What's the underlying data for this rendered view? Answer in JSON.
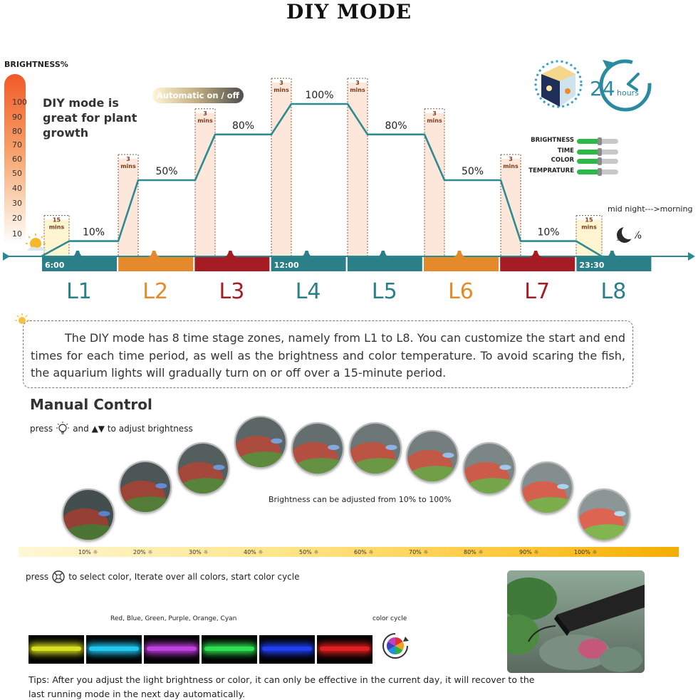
{
  "title": "DIY MODE",
  "y_axis": {
    "label": "BRIGHTNESS%",
    "ticks": [
      "100",
      "90",
      "80",
      "70",
      "60",
      "50",
      "40",
      "30",
      "20",
      "10"
    ]
  },
  "headline": "DIY mode is great for plant growth",
  "auto_pill": "Automatic on / off",
  "right_note": "mid night--->morning",
  "settings": [
    "BRIGHTNESS",
    "TIME",
    "COLOR",
    "TEMPRATURE"
  ],
  "clock_badge": {
    "number": "24",
    "unit": "hours"
  },
  "chart_data": {
    "type": "line",
    "title": "DIY MODE",
    "ylabel": "BRIGHTNESS%",
    "ylim": [
      0,
      100
    ],
    "stages": [
      {
        "label": "L1",
        "level": 10,
        "level_label": "10%",
        "ramp_label": "15",
        "ramp_unit": "mins",
        "time": "6:00",
        "color": "#2a7f88"
      },
      {
        "label": "L2",
        "level": 50,
        "level_label": "50%",
        "ramp_label": "3",
        "ramp_unit": "mins",
        "time": "",
        "color": "#e48a2a"
      },
      {
        "label": "L3",
        "level": 80,
        "level_label": "80%",
        "ramp_label": "3",
        "ramp_unit": "mins",
        "time": "",
        "color": "#a61c24"
      },
      {
        "label": "L4",
        "level": 100,
        "level_label": "100%",
        "ramp_label": "3",
        "ramp_unit": "mins",
        "time": "12:00",
        "color": "#2a7f88"
      },
      {
        "label": "L5",
        "level": 80,
        "level_label": "80%",
        "ramp_label": "3",
        "ramp_unit": "mins",
        "time": "",
        "color": "#2a7f88"
      },
      {
        "label": "L6",
        "level": 50,
        "level_label": "50%",
        "ramp_label": "3",
        "ramp_unit": "mins",
        "time": "",
        "color": "#e48a2a"
      },
      {
        "label": "L7",
        "level": 10,
        "level_label": "10%",
        "ramp_label": "3",
        "ramp_unit": "mins",
        "time": "",
        "color": "#a61c24"
      },
      {
        "label": "L8",
        "level": 0,
        "level_label": "0%",
        "ramp_label": "15",
        "ramp_unit": "mins",
        "time": "23:30",
        "color": "#2a7f88"
      }
    ]
  },
  "description": "The DIY mode has 8 time stage zones, namely from L1 to L8. You can customize the start and end times for each time period, as well as the brightness and color temperature. To avoid scaring the fish, the aquarium lights will gradually turn on or off over a 15-minute period.",
  "manual": {
    "title": "Manual Control",
    "hint_press": "press",
    "hint_rest": "and ▲▼ to adjust brightness",
    "range_note": "Brightness can be adjusted from 10% to 100%",
    "brightness_levels": [
      10,
      20,
      30,
      40,
      50,
      60,
      70,
      80,
      90,
      100
    ],
    "percent_labels": [
      "10%",
      "20%",
      "30%",
      "40%",
      "50%",
      "60%",
      "70%",
      "80%",
      "90%",
      "100%"
    ]
  },
  "color": {
    "hint_press": "press",
    "hint_rest": "to select color, Iterate over all colors, start color cycle",
    "colors_label": "Red, Blue, Green, Purple, Orange, Cyan",
    "cycle_label": "color cycle",
    "swatches": [
      "#d8e020",
      "#22c8f0",
      "#c040e0",
      "#2ee050",
      "#2040f0",
      "#e02020"
    ]
  },
  "tips": "Tips: After you adjust the light brightness or color, it can only be effective in the current day, it will recover to the last running mode  in the next day automatically."
}
